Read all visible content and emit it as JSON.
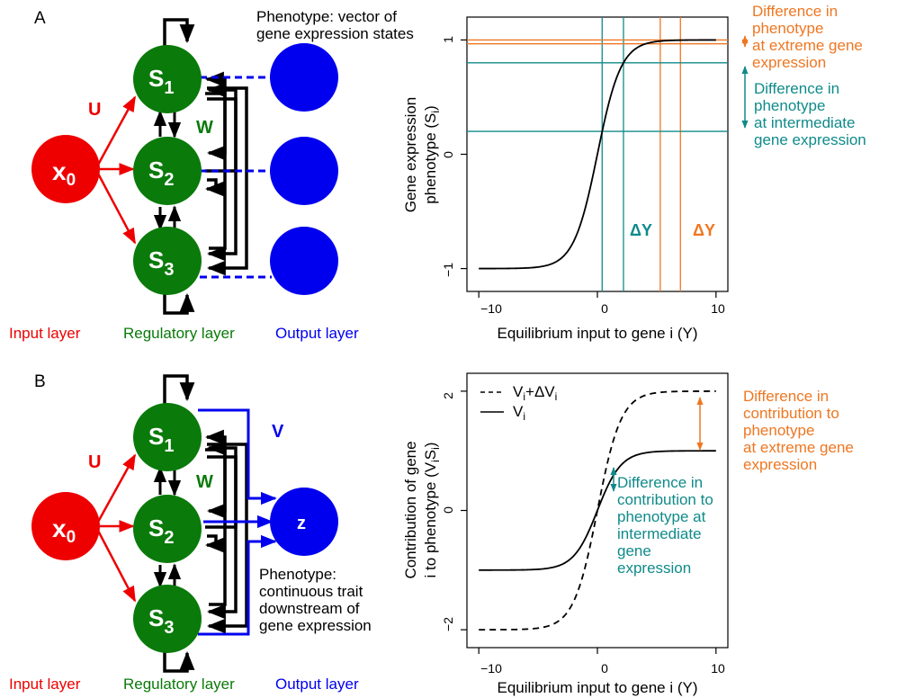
{
  "colors": {
    "input": "#ee0000",
    "regulatory": "#0a7a0a",
    "output": "#0000ee",
    "orange": "#ee7722",
    "teal": "#108a8a",
    "black": "#000000"
  },
  "panel_a": {
    "label": "A",
    "nodes": {
      "x0": {
        "main": "x",
        "sub": "0"
      },
      "s1": {
        "main": "S",
        "sub": "1"
      },
      "s2": {
        "main": "S",
        "sub": "2"
      },
      "s3": {
        "main": "S",
        "sub": "3"
      }
    },
    "weights": {
      "u": "U",
      "w": "W"
    },
    "phenotype_label": [
      "Phenotype: vector of",
      "gene expression states"
    ],
    "layers": {
      "input": "Input layer",
      "regulatory": "Regulatory layer",
      "output": "Output layer"
    },
    "chart": {
      "ylabel": [
        "Gene expression",
        "phenotype (S",
        "i",
        ")"
      ],
      "xlabel": "Equilibrium input to gene i (Y)",
      "xticks": [
        "−10",
        "0",
        "10"
      ],
      "yticks": [
        "−1",
        "0",
        "1"
      ],
      "delta_teal": "ΔY",
      "delta_orange": "ΔY",
      "orange_note": [
        "Difference in",
        "phenotype",
        "at extreme gene",
        "expression"
      ],
      "teal_note": [
        "Difference in",
        "phenotype",
        "at intermediate",
        "gene expression"
      ]
    }
  },
  "panel_b": {
    "label": "B",
    "nodes": {
      "x0": {
        "main": "x",
        "sub": "0"
      },
      "s1": {
        "main": "S",
        "sub": "1"
      },
      "s2": {
        "main": "S",
        "sub": "2"
      },
      "s3": {
        "main": "S",
        "sub": "3"
      },
      "z": {
        "main": "z"
      }
    },
    "weights": {
      "u": "U",
      "w": "W",
      "v": "V"
    },
    "phenotype_label": [
      "Phenotype:",
      "continuous trait",
      "downstream of",
      "gene expression"
    ],
    "layers": {
      "input": "Input layer",
      "regulatory": "Regulatory layer",
      "output": "Output layer"
    },
    "chart": {
      "ylabel": [
        "Contribution of gene",
        "i to phenotype (V",
        "i",
        "S",
        "i",
        ")"
      ],
      "xlabel": "Equilibrium input to gene i (Y)",
      "xticks": [
        "−10",
        "0",
        "10"
      ],
      "yticks": [
        "−2",
        "0",
        "2"
      ],
      "legend": [
        {
          "main": "V",
          "sub": "i",
          "rest": "+ΔV",
          "sub2": "i",
          "style": "dashed"
        },
        {
          "main": "V",
          "sub": "i",
          "rest": "",
          "sub2": "",
          "style": "solid"
        }
      ],
      "orange_note": [
        "Difference in",
        "contribution to",
        "phenotype",
        "at extreme gene",
        "expression"
      ],
      "teal_note": [
        "Difference in",
        "contribution to",
        "phenotype at",
        "intermediate",
        "gene",
        "expression"
      ]
    }
  },
  "chart_data": [
    {
      "type": "line",
      "title": "",
      "xlabel": "Equilibrium input to gene i (Y)",
      "ylabel": "Gene expression phenotype (Si)",
      "xlim": [
        -11,
        11
      ],
      "ylim": [
        -1.2,
        1.2
      ],
      "x_ticks": [
        -10,
        0,
        10
      ],
      "y_ticks": [
        -1,
        0,
        1
      ],
      "series": [
        {
          "function": "tanh(Y/2)",
          "x_range": [
            -10,
            10
          ]
        }
      ],
      "reference_lines": {
        "teal_vertical_x": [
          0.4,
          2.2
        ],
        "orange_vertical_x": [
          5.3,
          7.0
        ],
        "teal_horizontal_y": [
          0.2,
          0.8
        ],
        "orange_horizontal_y": [
          0.99,
          1.0
        ]
      },
      "grid": false
    },
    {
      "type": "line",
      "title": "",
      "xlabel": "Equilibrium input to gene i (Y)",
      "ylabel": "Contribution of gene i to phenotype (ViSi)",
      "xlim": [
        -11,
        11
      ],
      "ylim": [
        -2.3,
        2.3
      ],
      "x_ticks": [
        -10,
        0,
        10
      ],
      "y_ticks": [
        -2,
        0,
        2
      ],
      "series": [
        {
          "name": "Vi+ΔVi",
          "function": "2·tanh(Y/2)",
          "x_range": [
            -10,
            10
          ],
          "style": "dashed"
        },
        {
          "name": "Vi",
          "function": "tanh(Y/2)",
          "x_range": [
            -10,
            10
          ],
          "style": "solid"
        }
      ],
      "legend_position": "top-left",
      "grid": false
    }
  ]
}
